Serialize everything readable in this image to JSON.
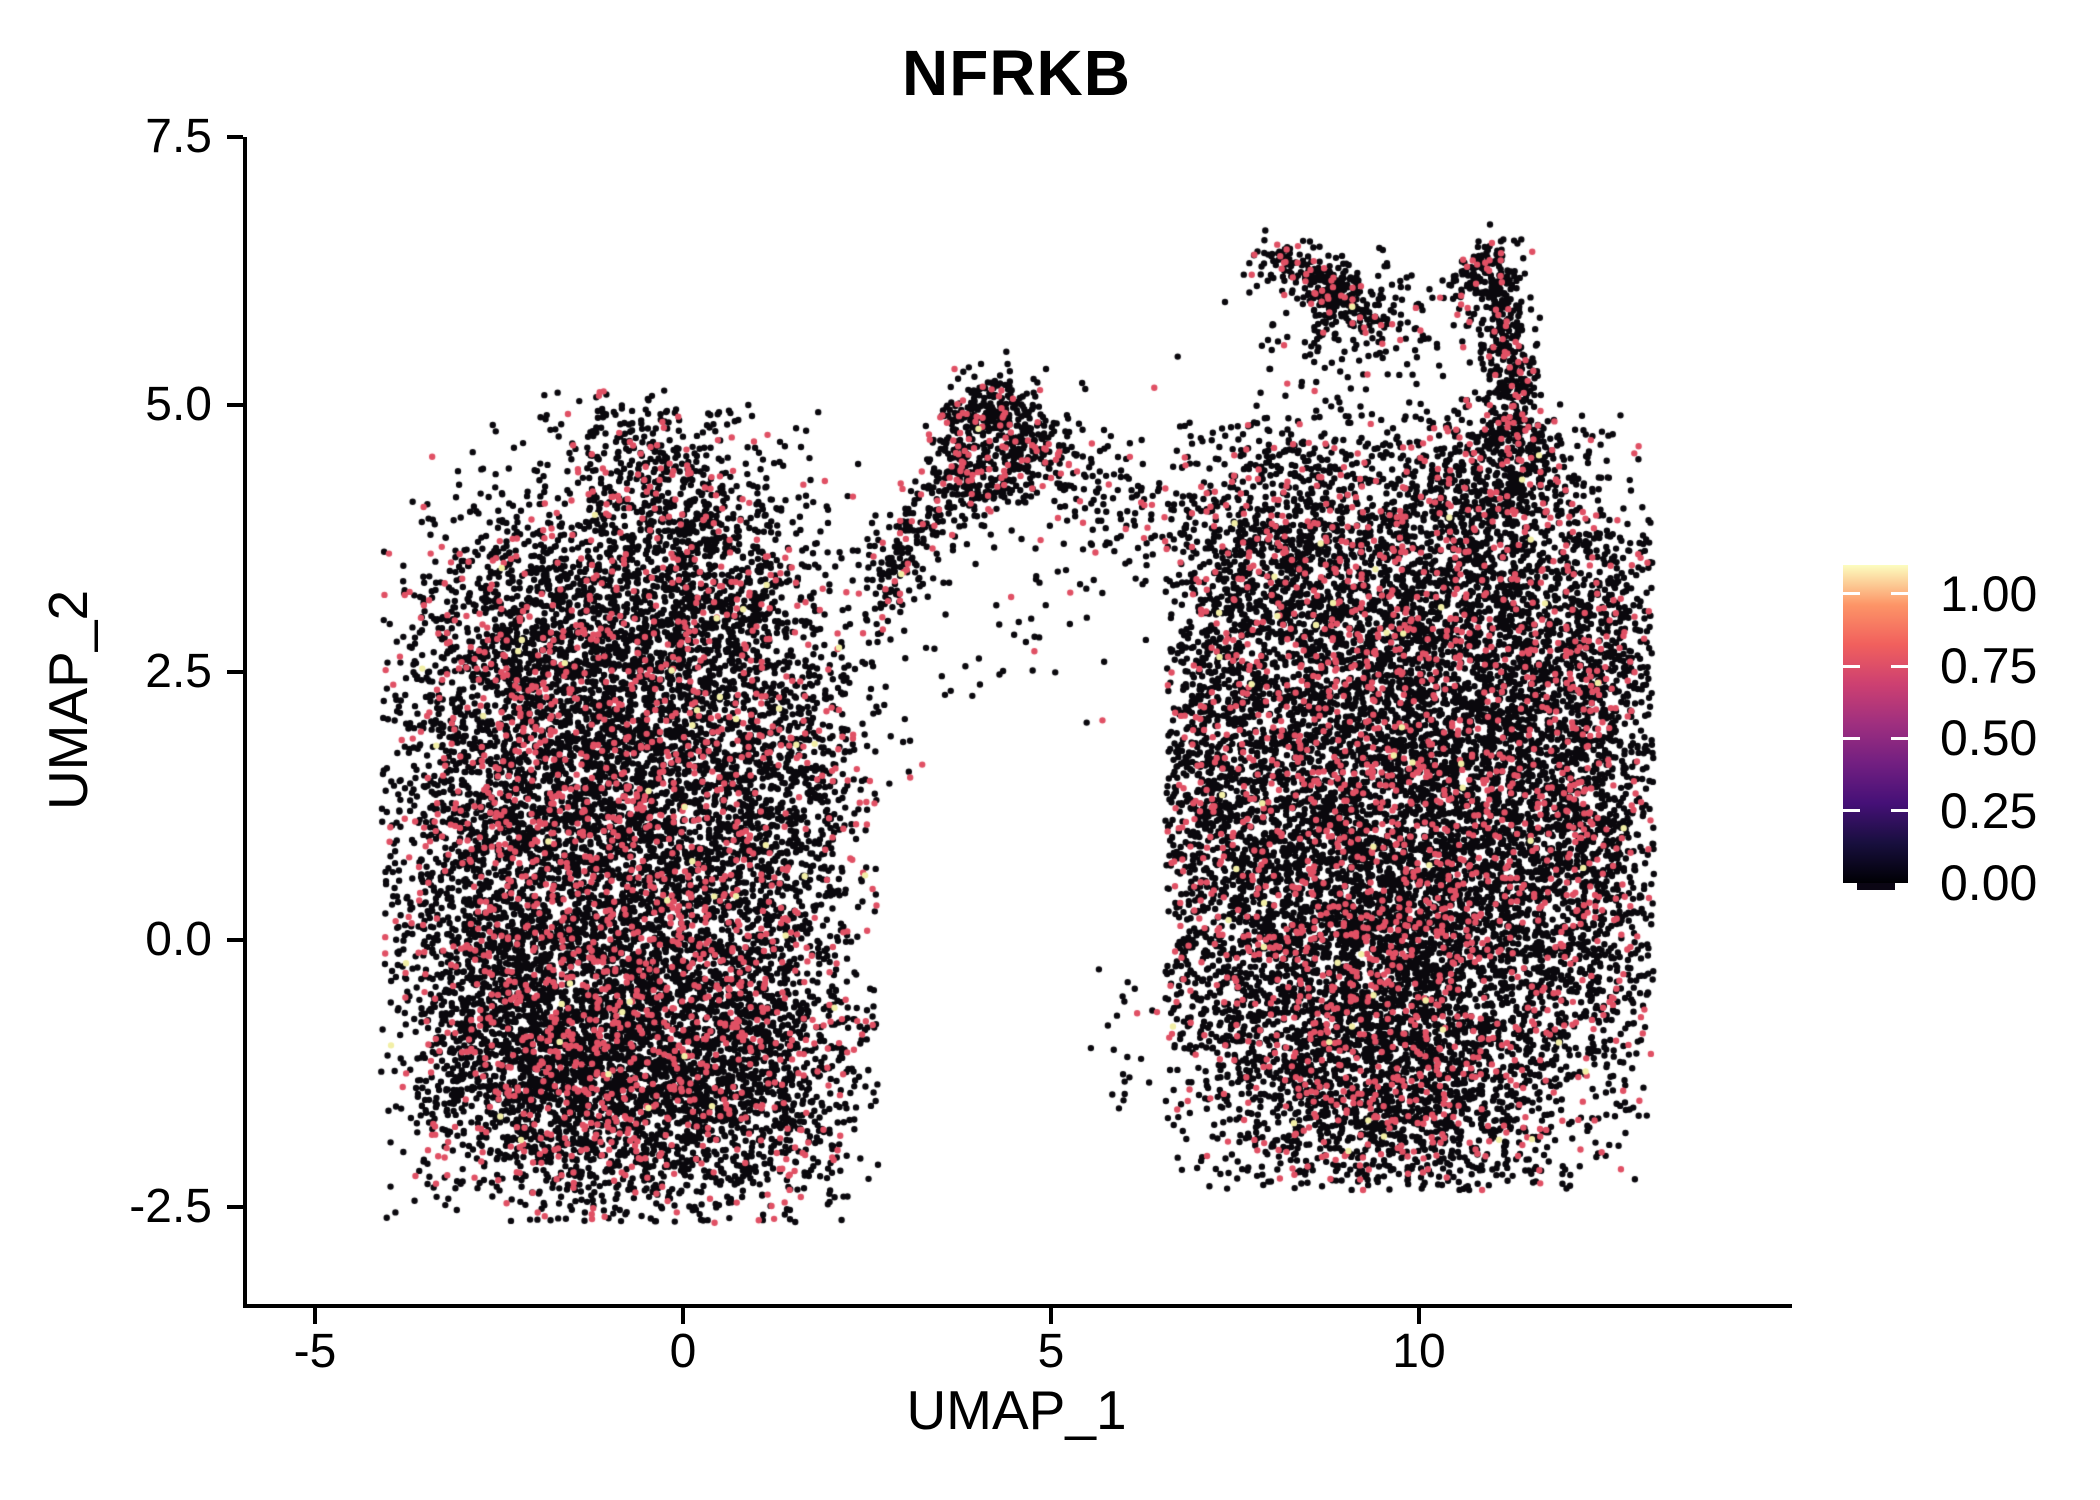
{
  "chart_data": {
    "type": "scatter",
    "title": "NFRKB",
    "xlabel": "UMAP_1",
    "ylabel": "UMAP_2",
    "xlim": [
      -5.95,
      15.0
    ],
    "ylim": [
      -3.43,
      7.5
    ],
    "xticks": [
      -5,
      0,
      5,
      10
    ],
    "xtick_labels": [
      "-5",
      "0",
      "5",
      "10"
    ],
    "yticks": [
      7.5,
      5.0,
      2.5,
      0.0,
      -2.5
    ],
    "ytick_labels": [
      "7.5",
      "5.0",
      "2.5",
      "0.0",
      "-2.5"
    ],
    "grid": false,
    "colorbar": {
      "position": "right",
      "range": [
        0,
        1.1
      ],
      "ticks": [
        1.0,
        0.75,
        0.5,
        0.25,
        0.0
      ],
      "tick_labels": [
        "1.00",
        "0.75",
        "0.50",
        "0.25",
        "0.00"
      ],
      "gradient_name": "magma",
      "gradient": [
        [
          0.0,
          "#000004"
        ],
        [
          0.125,
          "#180F3E"
        ],
        [
          0.25,
          "#451077"
        ],
        [
          0.375,
          "#721F81"
        ],
        [
          0.5,
          "#9F2F7F"
        ],
        [
          0.625,
          "#CD4071"
        ],
        [
          0.75,
          "#F1605D"
        ],
        [
          0.875,
          "#FD9567"
        ],
        [
          1.0,
          "#FCFDBF"
        ]
      ]
    },
    "point_style": {
      "radius": 3.2,
      "colors": [
        {
          "hex": "#0a080d",
          "expression_value": 0.0,
          "frac": 0.8615
        },
        {
          "hex": "#e05064",
          "expression_value": 0.7,
          "frac": 0.135
        },
        {
          "hex": "#f2efa6",
          "expression_value": 1.0,
          "frac": 0.0035
        }
      ]
    },
    "point_cloud_seed": 1337,
    "clusters": [
      {
        "t": "g",
        "x": -1.7,
        "y": 0.4,
        "sx": 1.1,
        "sy": 1.5,
        "n": 2400,
        "clip": [
          -4.1,
          2.65,
          -2.65,
          5.15
        ]
      },
      {
        "t": "g",
        "x": 0.1,
        "y": 0.1,
        "sx": 1.0,
        "sy": 1.4,
        "n": 2400,
        "clip": [
          -4.1,
          2.65,
          -2.65,
          5.15
        ]
      },
      {
        "t": "g",
        "x": -0.8,
        "y": -1.3,
        "sx": 1.25,
        "sy": 0.6,
        "n": 1500,
        "clip": [
          -4.1,
          2.65,
          -2.65,
          5.15
        ]
      },
      {
        "t": "g",
        "x": -0.6,
        "y": 2.3,
        "sx": 1.25,
        "sy": 0.85,
        "n": 1600,
        "clip": [
          -4.1,
          2.65,
          -2.65,
          5.15
        ]
      },
      {
        "t": "g",
        "x": -2.0,
        "y": 2.8,
        "sx": 0.8,
        "sy": 0.75,
        "n": 750,
        "clip": [
          -4.1,
          2.65,
          -2.65,
          5.15
        ]
      },
      {
        "t": "g",
        "x": 0.4,
        "y": 3.6,
        "sx": 0.75,
        "sy": 0.6,
        "n": 600,
        "clip": [
          -4.1,
          2.65,
          -2.65,
          5.15
        ]
      },
      {
        "t": "g",
        "x": -0.7,
        "y": 4.35,
        "sx": 0.55,
        "sy": 0.4,
        "n": 300,
        "clip": [
          -4.1,
          2.65,
          -2.65,
          5.15
        ]
      },
      {
        "t": "g",
        "x": -3.0,
        "y": 1.0,
        "sx": 0.6,
        "sy": 1.1,
        "n": 600,
        "clip": [
          -4.1,
          2.65,
          -2.65,
          5.15
        ]
      },
      {
        "t": "g",
        "x": 1.5,
        "y": 1.3,
        "sx": 0.65,
        "sy": 1.0,
        "n": 650,
        "clip": [
          -4.1,
          2.65,
          -2.65,
          5.15
        ]
      },
      {
        "t": "g",
        "x": 1.2,
        "y": -1.2,
        "sx": 0.75,
        "sy": 0.7,
        "n": 550,
        "clip": [
          -4.1,
          2.65,
          -2.65,
          5.15
        ]
      },
      {
        "t": "g",
        "x": -2.2,
        "y": -0.7,
        "sx": 0.8,
        "sy": 0.8,
        "n": 700,
        "clip": [
          -4.1,
          2.65,
          -2.65,
          5.15
        ]
      },
      {
        "t": "r",
        "x": 4.18,
        "y": 4.62,
        "r": 0.5,
        "s": 0.16,
        "n": 380
      },
      {
        "t": "g",
        "x": 4.35,
        "y": 4.8,
        "sx": 0.45,
        "sy": 0.28,
        "n": 130,
        "clip": [
          3.2,
          5.5,
          3.9,
          5.38
        ]
      },
      {
        "t": "p",
        "pts": [
          [
            2.65,
            3.15
          ],
          [
            3.3,
            3.9
          ],
          [
            3.85,
            4.35
          ]
        ],
        "s": 0.22,
        "n": 260
      },
      {
        "t": "p",
        "pts": [
          [
            4.75,
            4.5
          ],
          [
            5.6,
            4.15
          ],
          [
            6.4,
            3.8
          ]
        ],
        "s": 0.28,
        "n": 130
      },
      {
        "t": "g",
        "x": 4.4,
        "y": 3.1,
        "sx": 0.7,
        "sy": 0.6,
        "n": 45
      },
      {
        "t": "g",
        "x": 5.6,
        "y": 4.35,
        "sx": 0.8,
        "sy": 0.3,
        "n": 45
      },
      {
        "t": "g",
        "x": 9.6,
        "y": 1.3,
        "sx": 1.5,
        "sy": 1.35,
        "n": 2700,
        "clip": [
          6.55,
          13.2,
          -2.35,
          4.9
        ]
      },
      {
        "t": "g",
        "x": 10.6,
        "y": 0.0,
        "sx": 1.25,
        "sy": 1.25,
        "n": 2200,
        "clip": [
          6.55,
          13.2,
          -2.35,
          4.9
        ]
      },
      {
        "t": "g",
        "x": 8.6,
        "y": -0.4,
        "sx": 1.05,
        "sy": 1.15,
        "n": 2000,
        "clip": [
          6.55,
          13.2,
          -2.35,
          4.9
        ]
      },
      {
        "t": "g",
        "x": 9.3,
        "y": 3.0,
        "sx": 1.35,
        "sy": 0.85,
        "n": 1700,
        "clip": [
          6.55,
          13.2,
          -2.35,
          4.9
        ]
      },
      {
        "t": "g",
        "x": 11.6,
        "y": 2.3,
        "sx": 0.85,
        "sy": 1.0,
        "n": 1100,
        "clip": [
          6.55,
          13.2,
          -2.35,
          4.9
        ]
      },
      {
        "t": "g",
        "x": 7.2,
        "y": 1.4,
        "sx": 0.45,
        "sy": 1.4,
        "n": 750,
        "clip": [
          6.55,
          13.2,
          -2.35,
          4.9
        ]
      },
      {
        "t": "g",
        "x": 9.9,
        "y": -1.5,
        "sx": 1.0,
        "sy": 0.5,
        "n": 700,
        "clip": [
          6.55,
          13.2,
          -2.35,
          4.9
        ]
      },
      {
        "t": "g",
        "x": 12.3,
        "y": 0.8,
        "sx": 0.55,
        "sy": 1.0,
        "n": 600,
        "clip": [
          6.55,
          13.2,
          -2.35,
          4.9
        ]
      },
      {
        "t": "g",
        "x": 10.9,
        "y": 4.1,
        "sx": 0.9,
        "sy": 0.5,
        "n": 500,
        "clip": [
          6.55,
          13.2,
          -2.35,
          4.9
        ]
      },
      {
        "t": "g",
        "x": 8.1,
        "y": 3.8,
        "sx": 0.7,
        "sy": 0.6,
        "n": 500,
        "clip": [
          6.55,
          13.2,
          -2.35,
          4.9
        ]
      },
      {
        "t": "g",
        "x": 12.6,
        "y": 2.9,
        "sx": 0.45,
        "sy": 0.6,
        "n": 250,
        "clip": [
          6.55,
          13.2,
          -2.35,
          4.9
        ]
      },
      {
        "t": "p",
        "pts": [
          [
            11.05,
            6.3
          ],
          [
            11.15,
            5.7
          ],
          [
            11.3,
            5.1
          ],
          [
            11.35,
            4.6
          ]
        ],
        "s": 0.17,
        "n": 420
      },
      {
        "t": "p",
        "pts": [
          [
            10.5,
            6.0
          ],
          [
            10.8,
            6.25
          ],
          [
            11.05,
            6.33
          ]
        ],
        "s": 0.12,
        "n": 90
      },
      {
        "t": "p",
        "pts": [
          [
            7.75,
            6.35
          ],
          [
            8.4,
            6.25
          ],
          [
            8.9,
            6.05
          ],
          [
            9.55,
            5.6
          ]
        ],
        "s": 0.13,
        "n": 200
      },
      {
        "t": "g",
        "x": 8.8,
        "y": 6.05,
        "sx": 0.18,
        "sy": 0.18,
        "n": 110
      },
      {
        "t": "g",
        "x": 8.6,
        "y": 5.7,
        "sx": 0.55,
        "sy": 0.35,
        "n": 70
      },
      {
        "t": "g",
        "x": 10.0,
        "y": 5.9,
        "sx": 0.45,
        "sy": 0.3,
        "n": 55
      },
      {
        "t": "g",
        "x": 9.6,
        "y": 5.15,
        "sx": 1.1,
        "sy": 0.35,
        "n": 55
      },
      {
        "t": "g",
        "x": 11.2,
        "y": 4.35,
        "sx": 0.45,
        "sy": 0.35,
        "n": 170
      },
      {
        "t": "g",
        "x": 6.1,
        "y": -0.9,
        "sx": 0.25,
        "sy": 0.4,
        "n": 22
      },
      {
        "t": "g",
        "x": 2.9,
        "y": 2.1,
        "sx": 0.2,
        "sy": 0.3,
        "n": 12
      },
      {
        "t": "g",
        "x": 5.3,
        "y": 3.2,
        "sx": 0.4,
        "sy": 0.4,
        "n": 14
      }
    ]
  }
}
